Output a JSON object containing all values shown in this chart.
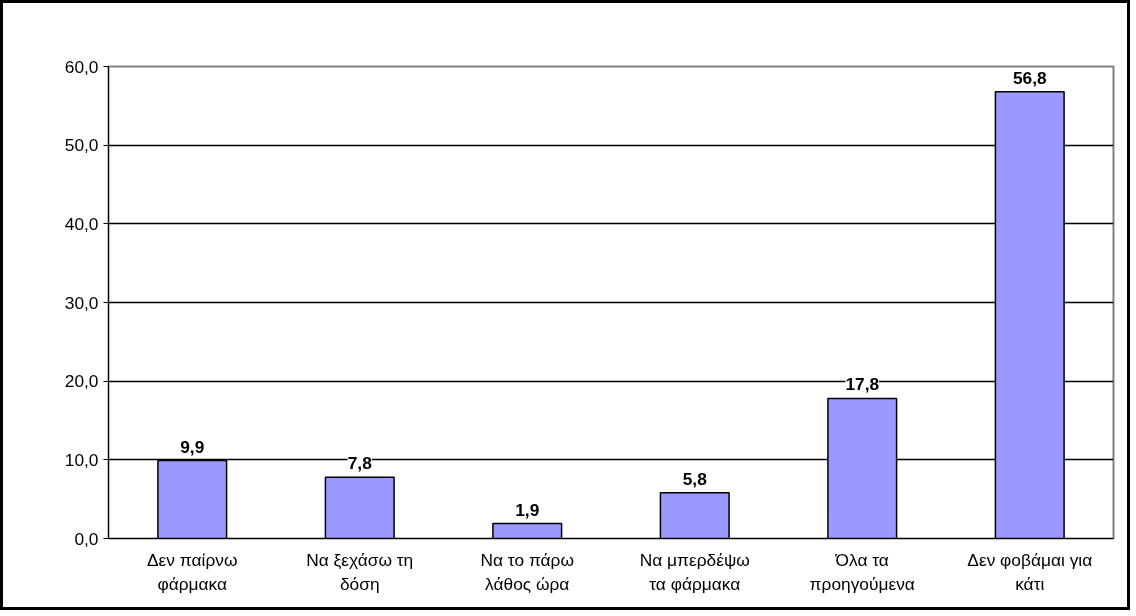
{
  "chart_data": {
    "type": "bar",
    "categories": [
      "Δεν παίρνω\nφάρμακα",
      "Να ξεχάσω τη\nδόση",
      "Να το πάρω\nλάθος ώρα",
      "Να μπερδέψω\nτα φάρμακα",
      "Όλα τα\nπροηγούμενα",
      "Δεν φοβάμαι για\nκάτι"
    ],
    "values": [
      9.9,
      7.8,
      1.9,
      5.8,
      17.8,
      56.8
    ],
    "value_labels": [
      "9,9",
      "7,8",
      "1,9",
      "5,8",
      "17,8",
      "56,8"
    ],
    "color": "#9999ff",
    "ylim": [
      0,
      60
    ],
    "yticks": [
      {
        "value": 0,
        "label": "0,0"
      },
      {
        "value": 10,
        "label": "10,0"
      },
      {
        "value": 20,
        "label": "20,0"
      },
      {
        "value": 30,
        "label": "30,0"
      },
      {
        "value": 40,
        "label": "40,0"
      },
      {
        "value": 50,
        "label": "50,0"
      },
      {
        "value": 60,
        "label": "60,0"
      }
    ],
    "grid": "y"
  }
}
